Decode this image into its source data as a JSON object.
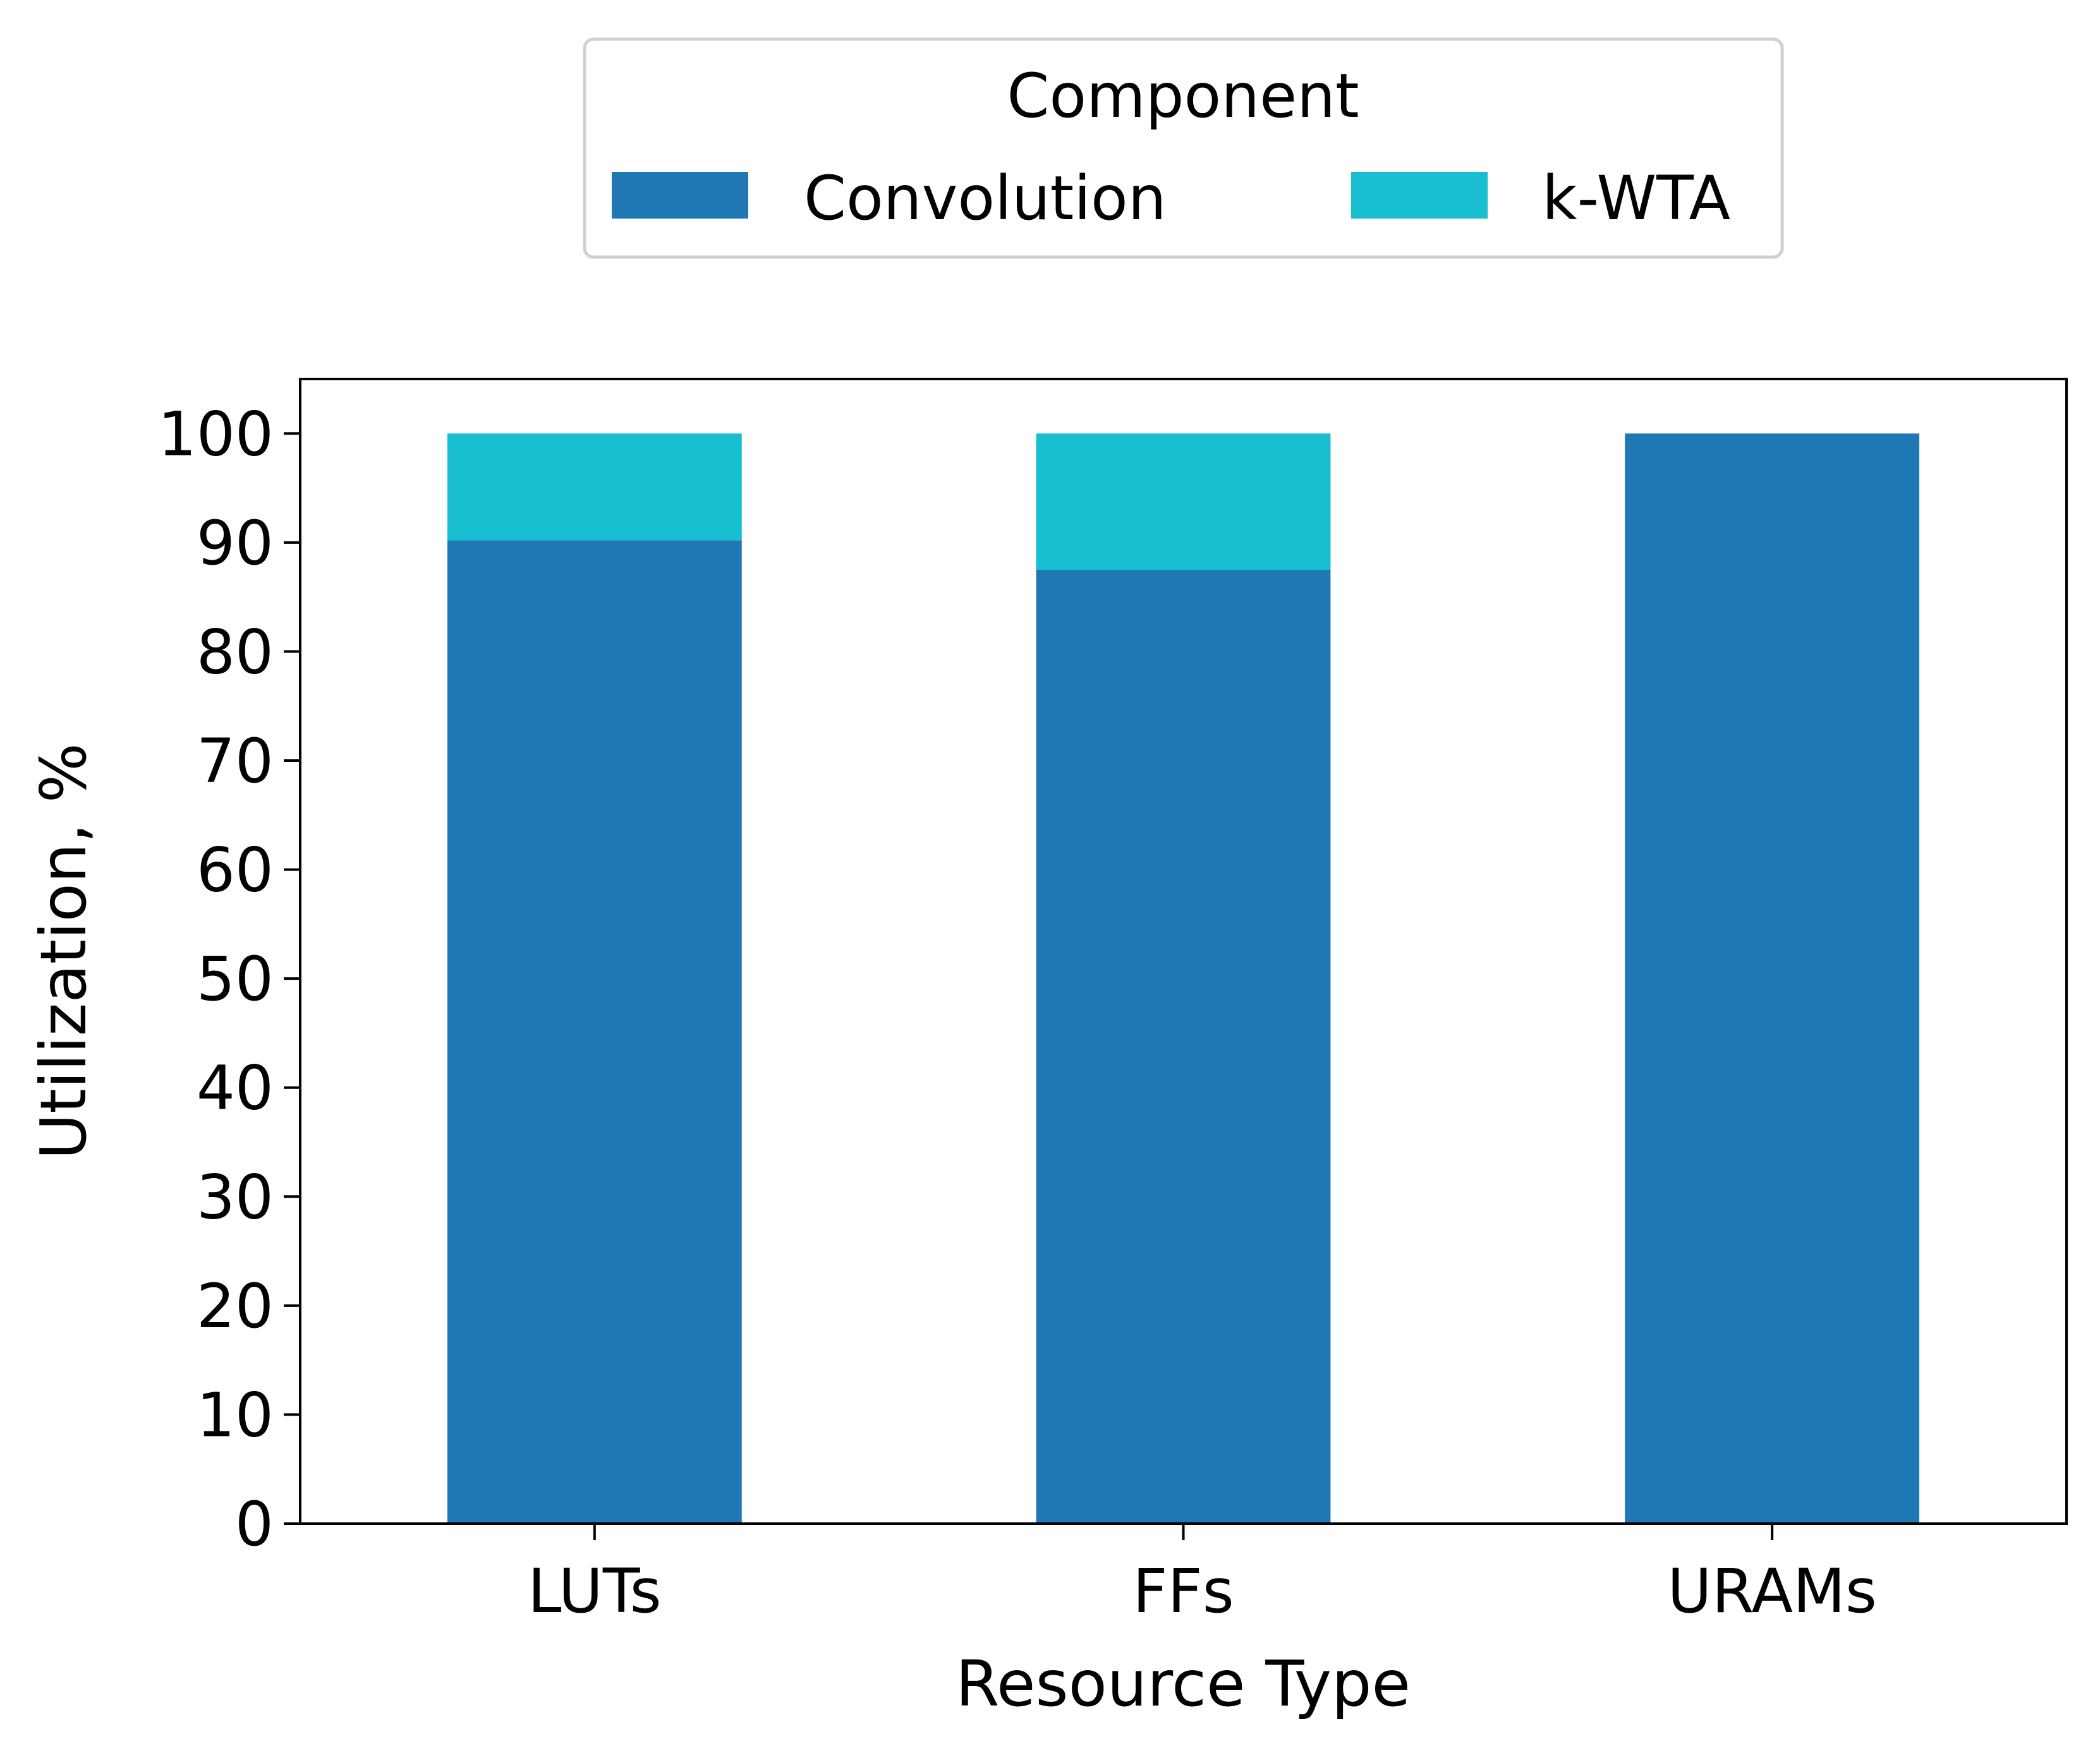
{
  "chart_data": {
    "type": "bar",
    "stacked": true,
    "categories": [
      "LUTs",
      "FFs",
      "URAMs"
    ],
    "series": [
      {
        "name": "Convolution",
        "values": [
          90.2,
          87.5,
          100
        ],
        "color": "#1f77b4"
      },
      {
        "name": "k-WTA",
        "values": [
          9.8,
          12.5,
          0
        ],
        "color": "#17becf"
      }
    ],
    "xlabel": "Resource Type",
    "ylabel": "Utilization, %",
    "ylim": [
      0,
      105
    ],
    "yticks": [
      0,
      10,
      20,
      30,
      40,
      50,
      60,
      70,
      80,
      90,
      100
    ],
    "grid": false,
    "legend": {
      "title": "Component",
      "placement": "top-center",
      "orientation": "horizontal"
    }
  }
}
